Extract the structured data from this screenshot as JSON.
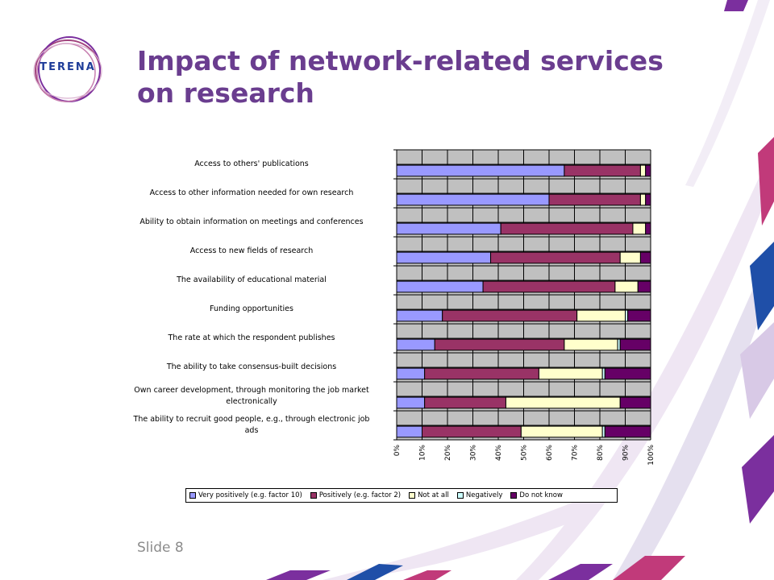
{
  "slide": {
    "title_line1": "Impact of network-related services",
    "title_line2": "on research",
    "number": "Slide 8"
  },
  "logo": {
    "text": "TERENA"
  },
  "colors": {
    "title": "#6a3d8f",
    "plot_background": "#c0c0c0",
    "accent_purple": "#7b2f9e",
    "accent_blue": "#1f4fa8"
  },
  "chart_data": {
    "type": "bar",
    "orientation": "horizontal",
    "stacked": "100%",
    "categories": [
      "Access to others' publications",
      "Access to other information needed for own research",
      "Ability to obtain information on meetings and conferences",
      "Access to new fields of research",
      "The availability of educational material",
      "Funding opportunities",
      "The rate at which the respondent publishes",
      "The ability to take consensus-built decisions",
      "Own career development, through monitoring the job market electronically",
      "The ability to recruit good people, e.g., through electronic job ads"
    ],
    "series": [
      {
        "name": "Very positively (e.g. factor 10)",
        "color": "#9999ff",
        "values": [
          66,
          60,
          41,
          37,
          34,
          18,
          15,
          11,
          11,
          10
        ]
      },
      {
        "name": "Positively (e.g. factor 2)",
        "color": "#993366",
        "values": [
          30,
          36,
          52,
          51,
          52,
          53,
          51,
          45,
          32,
          39
        ]
      },
      {
        "name": "Not at all",
        "color": "#ffffcc",
        "values": [
          2,
          2,
          5,
          8,
          9,
          19,
          21,
          25,
          45,
          32
        ]
      },
      {
        "name": "Negatively",
        "color": "#ccffff",
        "values": [
          0,
          0,
          0,
          0,
          0,
          1,
          1,
          1,
          0,
          1
        ]
      },
      {
        "name": "Do not know",
        "color": "#660066",
        "values": [
          2,
          2,
          2,
          4,
          5,
          9,
          12,
          18,
          12,
          18
        ]
      }
    ],
    "x_ticks": [
      "0%",
      "10%",
      "20%",
      "30%",
      "40%",
      "50%",
      "60%",
      "70%",
      "80%",
      "90%",
      "100%"
    ],
    "xlim": [
      0,
      100
    ],
    "grid": true,
    "legend": "bottom"
  }
}
